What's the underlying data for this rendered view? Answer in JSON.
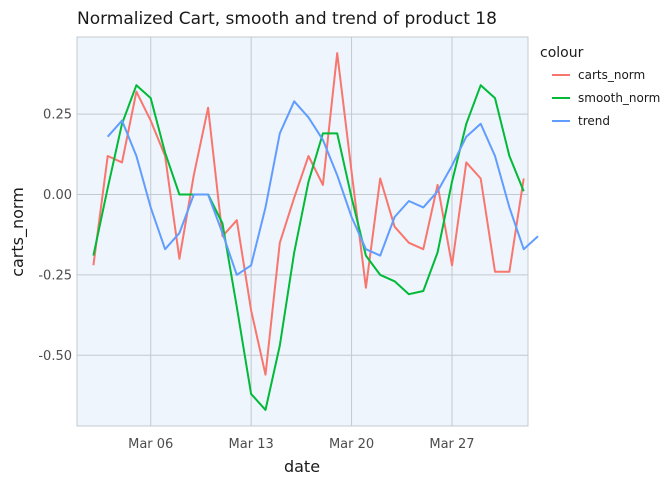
{
  "chart_data": {
    "type": "line",
    "title": "Normalized Cart, smooth and trend of product 18",
    "xlabel": "date",
    "ylabel": "carts_norm",
    "x_ticks": [
      {
        "day": 6,
        "label": "Mar 06"
      },
      {
        "day": 13,
        "label": "Mar 13"
      },
      {
        "day": 20,
        "label": "Mar 20"
      },
      {
        "day": 27,
        "label": "Mar 27"
      }
    ],
    "y_ticks": [
      {
        "value": 0.25,
        "label": "0.25"
      },
      {
        "value": 0.0,
        "label": "0.00"
      },
      {
        "value": -0.25,
        "label": "-0.25"
      },
      {
        "value": -0.5,
        "label": "-0.50"
      }
    ],
    "x_range": [
      0.86,
      32.3
    ],
    "y_range": [
      -0.72,
      0.49
    ],
    "panel_background": "#eef5fc",
    "grid": true,
    "legend": {
      "title": "colour",
      "position": "right"
    },
    "series": [
      {
        "name": "carts_norm",
        "color": "#f8766d",
        "points": [
          [
            2,
            -0.22
          ],
          [
            3,
            0.12
          ],
          [
            4,
            0.1
          ],
          [
            5,
            0.32
          ],
          [
            6,
            0.23
          ],
          [
            7,
            0.12
          ],
          [
            8,
            -0.2
          ],
          [
            9,
            0.06
          ],
          [
            10,
            0.27
          ],
          [
            11,
            -0.13
          ],
          [
            12,
            -0.08
          ],
          [
            13,
            -0.36
          ],
          [
            14,
            -0.56
          ],
          [
            15,
            -0.15
          ],
          [
            16,
            -0.01
          ],
          [
            17,
            0.12
          ],
          [
            18,
            0.03
          ],
          [
            19,
            0.44
          ],
          [
            20,
            0.07
          ],
          [
            21,
            -0.29
          ],
          [
            22,
            0.05
          ],
          [
            23,
            -0.1
          ],
          [
            24,
            -0.15
          ],
          [
            25,
            -0.17
          ],
          [
            26,
            0.03
          ],
          [
            27,
            -0.22
          ],
          [
            28,
            0.1
          ],
          [
            29,
            0.05
          ],
          [
            30,
            -0.24
          ],
          [
            31,
            -0.24
          ],
          [
            32,
            0.05
          ]
        ]
      },
      {
        "name": "smooth_norm",
        "color": "#00ba38",
        "points": [
          [
            2,
            -0.19
          ],
          [
            3,
            0.02
          ],
          [
            4,
            0.22
          ],
          [
            5,
            0.34
          ],
          [
            6,
            0.3
          ],
          [
            7,
            0.13
          ],
          [
            8,
            0.0
          ],
          [
            9,
            0.0
          ],
          [
            10,
            0.0
          ],
          [
            11,
            -0.09
          ],
          [
            12,
            -0.35
          ],
          [
            13,
            -0.62
          ],
          [
            14,
            -0.67
          ],
          [
            15,
            -0.47
          ],
          [
            16,
            -0.18
          ],
          [
            17,
            0.04
          ],
          [
            18,
            0.19
          ],
          [
            19,
            0.19
          ],
          [
            20,
            -0.01
          ],
          [
            21,
            -0.19
          ],
          [
            22,
            -0.25
          ],
          [
            23,
            -0.27
          ],
          [
            24,
            -0.31
          ],
          [
            25,
            -0.3
          ],
          [
            26,
            -0.18
          ],
          [
            27,
            0.04
          ],
          [
            28,
            0.22
          ],
          [
            29,
            0.34
          ],
          [
            30,
            0.3
          ],
          [
            31,
            0.12
          ],
          [
            32,
            0.01
          ]
        ]
      },
      {
        "name": "trend",
        "color": "#619cff",
        "points": [
          [
            3,
            0.18
          ],
          [
            4,
            0.23
          ],
          [
            5,
            0.12
          ],
          [
            6,
            -0.04
          ],
          [
            7,
            -0.17
          ],
          [
            8,
            -0.12
          ],
          [
            9,
            0.0
          ],
          [
            10,
            0.0
          ],
          [
            11,
            -0.12
          ],
          [
            12,
            -0.25
          ],
          [
            13,
            -0.22
          ],
          [
            14,
            -0.04
          ],
          [
            15,
            0.19
          ],
          [
            16,
            0.29
          ],
          [
            17,
            0.24
          ],
          [
            18,
            0.17
          ],
          [
            19,
            0.06
          ],
          [
            20,
            -0.07
          ],
          [
            21,
            -0.17
          ],
          [
            22,
            -0.19
          ],
          [
            23,
            -0.07
          ],
          [
            24,
            -0.02
          ],
          [
            25,
            -0.04
          ],
          [
            26,
            0.01
          ],
          [
            27,
            0.09
          ],
          [
            28,
            0.18
          ],
          [
            29,
            0.22
          ],
          [
            30,
            0.12
          ],
          [
            31,
            -0.04
          ],
          [
            32,
            -0.17
          ],
          [
            33,
            -0.13
          ]
        ]
      }
    ]
  }
}
